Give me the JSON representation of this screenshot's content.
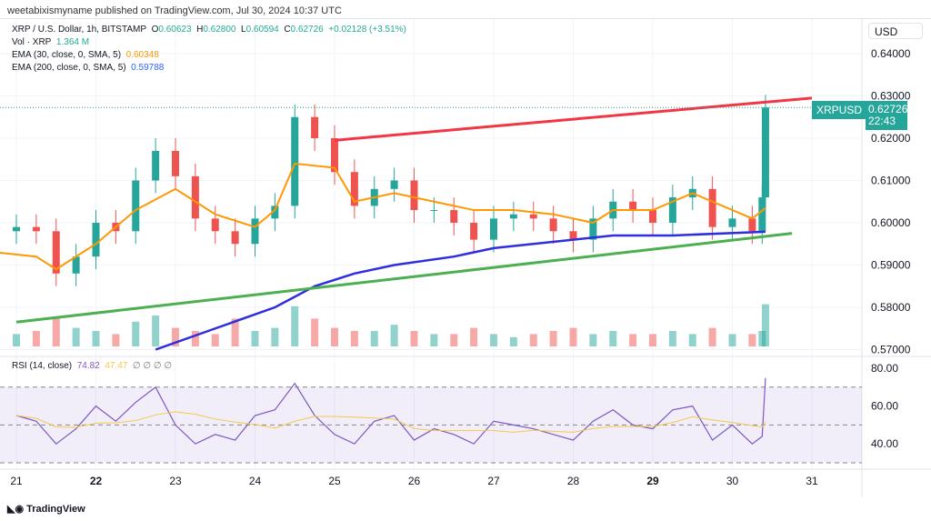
{
  "header": {
    "published": "weetabixismyname published on TradingView.com, Jul 30, 2024 10:37 UTC"
  },
  "legend": {
    "symbol": "XRP / U.S. Dollar, 1h, BITSTAMP",
    "o_label": "O",
    "o": "0.60623",
    "h_label": "H",
    "h": "0.62800",
    "l_label": "L",
    "l": "0.60594",
    "c_label": "C",
    "c": "0.62726",
    "change": "+0.02128 (+3.51%)",
    "vol_label": "Vol · XRP",
    "vol": "1.364 M",
    "ema30_label": "EMA (30, close, 0, SMA, 5)",
    "ema30": "0.60348",
    "ema200_label": "EMA (200, close, 0, SMA, 5)",
    "ema200": "0.59788",
    "rsi_label": "RSI (14, close)",
    "rsi": "74.82",
    "rsi_ma": "47.47",
    "rsi_extra": "∅ ∅ ∅ ∅"
  },
  "price_axis": {
    "currency": "USD",
    "ticks": [
      "0.64000",
      "0.63000",
      "0.62000",
      "0.61000",
      "0.60000",
      "0.59000",
      "0.58000",
      "0.57000"
    ]
  },
  "rsi_axis": {
    "ticks": [
      "80.00",
      "60.00",
      "40.00"
    ]
  },
  "time_axis": {
    "ticks": [
      "21",
      "22",
      "23",
      "24",
      "25",
      "26",
      "27",
      "28",
      "29",
      "30",
      "31"
    ]
  },
  "last_price": {
    "symbol": "XRPUSD",
    "price": "0.62726",
    "countdown": "22:43"
  },
  "footer": {
    "brand": "TradingView"
  },
  "colors": {
    "up": "#26a69a",
    "down": "#ef5350",
    "ema30": "#ff9800",
    "ema200": "#2e2ee0",
    "resistance": "#f23645",
    "support": "#4caf50",
    "rsi": "#7e57c2",
    "rsi_ma": "#f2c94c"
  },
  "chart_data": {
    "type": "candlestick",
    "ylim": [
      0.57,
      0.64
    ],
    "closes": {
      "times": [
        "07-21 00",
        "07-21 06",
        "07-21 12",
        "07-21 18",
        "07-22 00",
        "07-22 06",
        "07-22 12",
        "07-22 18",
        "07-23 00",
        "07-23 06",
        "07-23 12",
        "07-23 18",
        "07-24 00",
        "07-24 06",
        "07-24 12",
        "07-24 18",
        "07-25 00",
        "07-25 06",
        "07-25 12",
        "07-25 18",
        "07-26 00",
        "07-26 06",
        "07-26 12",
        "07-26 18",
        "07-27 00",
        "07-27 06",
        "07-27 12",
        "07-27 18",
        "07-28 00",
        "07-28 06",
        "07-28 12",
        "07-28 18",
        "07-29 00",
        "07-29 06",
        "07-29 12",
        "07-29 18",
        "07-30 00",
        "07-30 06",
        "07-30 09",
        "07-30 10"
      ],
      "values": [
        0.599,
        0.598,
        0.588,
        0.592,
        0.6,
        0.598,
        0.61,
        0.617,
        0.611,
        0.601,
        0.598,
        0.595,
        0.601,
        0.604,
        0.625,
        0.62,
        0.612,
        0.604,
        0.608,
        0.61,
        0.603,
        0.603,
        0.6,
        0.596,
        0.601,
        0.602,
        0.601,
        0.598,
        0.596,
        0.601,
        0.605,
        0.603,
        0.6,
        0.606,
        0.608,
        0.599,
        0.601,
        0.598,
        0.606,
        0.62726
      ],
      "volume_m": [
        0.4,
        0.5,
        0.9,
        0.6,
        0.5,
        0.4,
        0.8,
        1.0,
        0.6,
        0.5,
        0.4,
        0.9,
        0.5,
        0.6,
        1.3,
        0.9,
        0.6,
        0.5,
        0.5,
        0.7,
        0.5,
        0.4,
        0.4,
        0.6,
        0.4,
        0.3,
        0.4,
        0.5,
        0.6,
        0.4,
        0.5,
        0.4,
        0.4,
        0.5,
        0.4,
        0.6,
        0.4,
        0.4,
        0.5,
        1.364
      ],
      "rsi": [
        55,
        52,
        40,
        48,
        60,
        52,
        62,
        70,
        50,
        40,
        45,
        42,
        55,
        58,
        72,
        55,
        45,
        40,
        52,
        55,
        42,
        48,
        45,
        40,
        52,
        50,
        48,
        45,
        42,
        52,
        58,
        50,
        48,
        58,
        60,
        42,
        50,
        40,
        44,
        74.82
      ]
    },
    "ema30": {
      "times": [
        "07-20 18",
        "07-21 06",
        "07-21 12",
        "07-22 00",
        "07-22 12",
        "07-23 00",
        "07-23 12",
        "07-24 00",
        "07-24 06",
        "07-24 12",
        "07-25 00",
        "07-25 06",
        "07-25 18",
        "07-26 06",
        "07-26 18",
        "07-27 06",
        "07-27 18",
        "07-28 06",
        "07-28 12",
        "07-29 00",
        "07-29 12",
        "07-29 18",
        "07-30 06",
        "07-30 10"
      ],
      "values": [
        0.593,
        0.592,
        0.589,
        0.595,
        0.603,
        0.608,
        0.602,
        0.599,
        0.603,
        0.614,
        0.613,
        0.605,
        0.607,
        0.605,
        0.603,
        0.603,
        0.602,
        0.6,
        0.603,
        0.603,
        0.607,
        0.605,
        0.601,
        0.60348
      ]
    },
    "ema200": {
      "times": [
        "07-22 18",
        "07-23 12",
        "07-24 06",
        "07-24 18",
        "07-25 06",
        "07-25 18",
        "07-26 12",
        "07-27 00",
        "07-27 12",
        "07-28 00",
        "07-28 12",
        "07-29 06",
        "07-30 10"
      ],
      "values": [
        0.57,
        0.575,
        0.58,
        0.585,
        0.588,
        0.59,
        0.592,
        0.594,
        0.595,
        0.596,
        0.597,
        0.597,
        0.59788
      ]
    },
    "trendlines": [
      {
        "name": "resistance",
        "from": [
          "07-25 00",
          0.6195
        ],
        "to": [
          "07-31 00",
          0.6295
        ]
      },
      {
        "name": "support",
        "from": [
          "07-21 00",
          0.5765
        ],
        "to": [
          "07-30 18",
          0.5975
        ]
      }
    ],
    "rsi_levels": [
      70,
      50,
      30
    ],
    "rsi_ylim": [
      25,
      80
    ]
  }
}
